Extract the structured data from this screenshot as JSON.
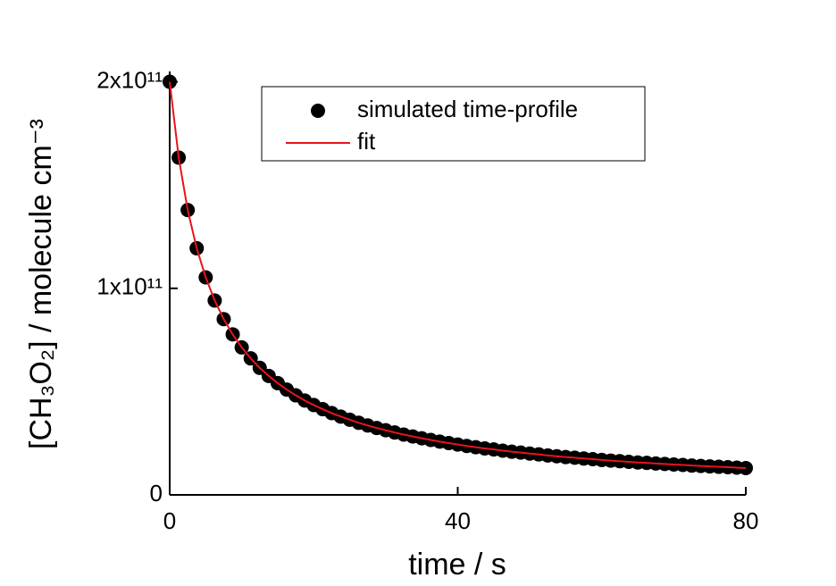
{
  "chart_data": {
    "type": "scatter",
    "x_label": "time / s",
    "y_label": "[CH₃O₂] / molecule cm⁻³",
    "x": [
      0,
      1.25,
      2.5,
      3.75,
      5,
      6.25,
      7.5,
      8.75,
      10,
      11.25,
      12.5,
      13.75,
      15,
      16.25,
      17.5,
      18.75,
      20,
      21.25,
      22.5,
      23.75,
      25,
      26.25,
      27.5,
      28.75,
      30,
      31.25,
      32.5,
      33.75,
      35,
      36.25,
      37.5,
      38.75,
      40,
      41.25,
      42.5,
      43.75,
      45,
      46.25,
      47.5,
      48.75,
      50,
      51.25,
      52.5,
      53.75,
      55,
      56.25,
      57.5,
      58.75,
      60,
      61.25,
      62.5,
      63.75,
      65,
      66.25,
      67.5,
      68.75,
      70,
      71.25,
      72.5,
      73.75,
      75,
      76.25,
      77.5,
      78.75,
      80
    ],
    "series": [
      {
        "name": "simulated time-profile",
        "mode": "markers",
        "color": "#000000",
        "values": [
          200000000000.0,
          163300000000.0,
          137900000000.0,
          119400000000.0,
          105300000000.0,
          94100000000.0,
          85100000000.0,
          77700000000.0,
          71400000000.0,
          66100000000.0,
          61500000000.0,
          57600000000.0,
          54100000000.0,
          51000000000.0,
          48200000000.0,
          45700000000.0,
          43500000000.0,
          41500000000.0,
          39600000000.0,
          37900000000.0,
          36400000000.0,
          34900000000.0,
          33600000000.0,
          32400000000.0,
          31300000000.0,
          30200000000.0,
          29200000000.0,
          28300000000.0,
          27400000000.0,
          26600000000.0,
          25800000000.0,
          25100000000.0,
          24400000000.0,
          23700000000.0,
          23100000000.0,
          22500000000.0,
          22000000000.0,
          21400000000.0,
          20900000000.0,
          20500000000.0,
          20000000000.0,
          19600000000.0,
          19100000000.0,
          18700000000.0,
          18300000000.0,
          18000000000.0,
          17600000000.0,
          17300000000.0,
          16900000000.0,
          16600000000.0,
          16300000000.0,
          16000000000.0,
          15700000000.0,
          15500000000.0,
          15200000000.0,
          15000000000.0,
          14700000000.0,
          14500000000.0,
          14200000000.0,
          14000000000.0,
          13800000000.0,
          13600000000.0,
          13400000000.0,
          13200000000.0,
          13000000000.0
        ]
      },
      {
        "name": "fit",
        "mode": "line",
        "color": "#e8141b",
        "values": [
          200000000000.0,
          163300000000.0,
          137900000000.0,
          119400000000.0,
          105300000000.0,
          94100000000.0,
          85100000000.0,
          77700000000.0,
          71400000000.0,
          66100000000.0,
          61500000000.0,
          57600000000.0,
          54100000000.0,
          51000000000.0,
          48200000000.0,
          45700000000.0,
          43500000000.0,
          41500000000.0,
          39600000000.0,
          37900000000.0,
          36400000000.0,
          34900000000.0,
          33600000000.0,
          32400000000.0,
          31300000000.0,
          30200000000.0,
          29200000000.0,
          28300000000.0,
          27400000000.0,
          26600000000.0,
          25800000000.0,
          25100000000.0,
          24400000000.0,
          23700000000.0,
          23100000000.0,
          22500000000.0,
          22000000000.0,
          21400000000.0,
          20900000000.0,
          20500000000.0,
          20000000000.0,
          19600000000.0,
          19100000000.0,
          18700000000.0,
          18300000000.0,
          18000000000.0,
          17600000000.0,
          17300000000.0,
          16900000000.0,
          16600000000.0,
          16300000000.0,
          16000000000.0,
          15700000000.0,
          15500000000.0,
          15200000000.0,
          15000000000.0,
          14700000000.0,
          14500000000.0,
          14200000000.0,
          14000000000.0,
          13800000000.0,
          13600000000.0,
          13400000000.0,
          13200000000.0,
          13000000000.0
        ]
      }
    ],
    "xlim": [
      0,
      80
    ],
    "xticks": [
      0,
      40,
      80
    ],
    "ylim": [
      0,
      205000000000.0
    ],
    "yticks": [
      0,
      {
        "value": 100000000000.0,
        "label": "1x10¹¹"
      },
      {
        "value": 200000000000.0,
        "label": "2x10¹¹"
      }
    ],
    "grid": false,
    "legend": "top"
  }
}
